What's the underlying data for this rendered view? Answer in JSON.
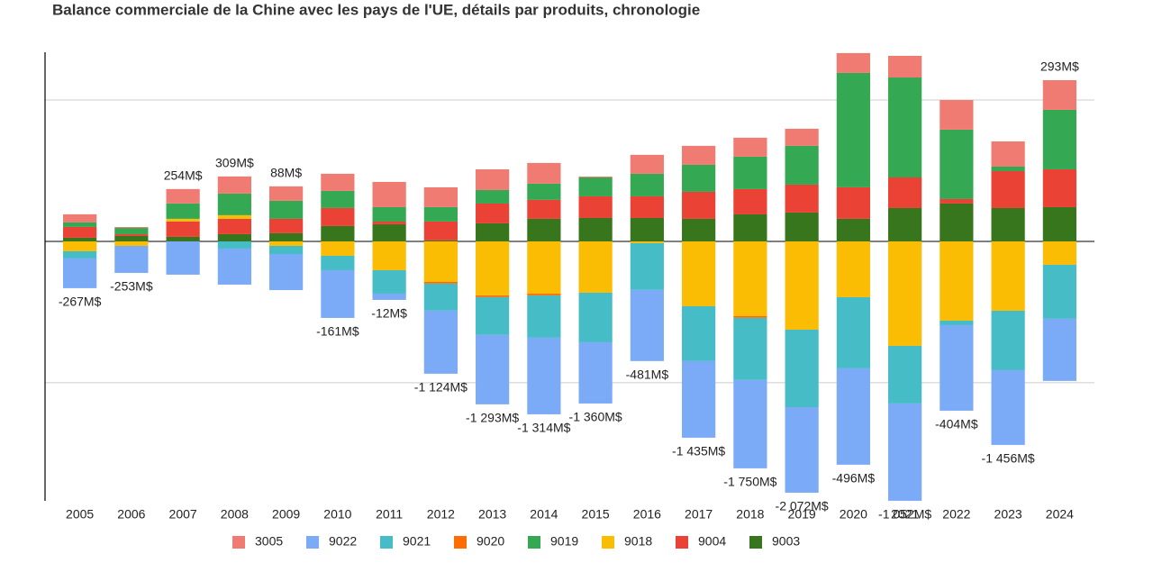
{
  "chart_data": {
    "type": "stacked_bar",
    "title": "Balance commerciale de la Chine avec les pays de l'UE, détails par produits, chronologie",
    "categories": [
      "2005",
      "2006",
      "2007",
      "2008",
      "2009",
      "2010",
      "2011",
      "2012",
      "2013",
      "2014",
      "2015",
      "2016",
      "2017",
      "2018",
      "2019",
      "2020",
      "2021",
      "2022",
      "2023",
      "2024"
    ],
    "series": [
      {
        "name": "3005",
        "color": "#f07b72",
        "values": [
          115,
          13,
          204,
          242,
          204,
          242,
          357,
          280,
          293,
          293,
          13,
          268,
          268,
          268,
          242,
          280,
          306,
          420,
          357,
          420
        ]
      },
      {
        "name": "9022",
        "color": "#7baaf7",
        "values": [
          -420,
          -382,
          -471,
          -510,
          -510,
          -675,
          -89,
          -892,
          -981,
          -1083,
          -866,
          -1006,
          -1083,
          -1249,
          -1210,
          -1363,
          -1376,
          -1210,
          -1057,
          -879
        ]
      },
      {
        "name": "9021",
        "color": "#46bdc6",
        "values": [
          -102,
          0,
          0,
          -102,
          -115,
          -204,
          -331,
          -382,
          -535,
          -599,
          -701,
          -662,
          -777,
          -879,
          -1096,
          -1006,
          -815,
          -64,
          -841,
          -764
        ]
      },
      {
        "name": "9020",
        "color": "#ff6d01",
        "values": [
          0,
          0,
          0,
          0,
          0,
          0,
          0,
          -25,
          -25,
          -25,
          0,
          0,
          0,
          -25,
          0,
          0,
          0,
          0,
          0,
          0
        ]
      },
      {
        "name": "9019",
        "color": "#34a853",
        "values": [
          64,
          89,
          217,
          306,
          255,
          242,
          204,
          204,
          191,
          229,
          268,
          319,
          382,
          459,
          548,
          1618,
          1414,
          981,
          64,
          841
        ]
      },
      {
        "name": "9018",
        "color": "#fbbc04",
        "values": [
          -140,
          -64,
          38,
          51,
          -64,
          -204,
          -408,
          -573,
          -764,
          -739,
          -726,
          -25,
          -917,
          -1057,
          -1249,
          -790,
          -1478,
          -1121,
          -981,
          -331
        ]
      },
      {
        "name": "9004",
        "color": "#ea4335",
        "values": [
          153,
          25,
          217,
          217,
          204,
          255,
          38,
          268,
          280,
          268,
          306,
          306,
          382,
          357,
          395,
          446,
          433,
          64,
          522,
          535
        ]
      },
      {
        "name": "9003",
        "color": "#38761d",
        "values": [
          51,
          76,
          64,
          102,
          115,
          217,
          242,
          13,
          255,
          319,
          331,
          331,
          319,
          382,
          408,
          319,
          471,
          535,
          471,
          484
        ]
      }
    ],
    "totals": {
      "values": [
        -267,
        -253,
        254,
        309,
        88,
        -161,
        -12,
        -1124,
        -1293,
        -1314,
        -1360,
        -481,
        -1435,
        -1750,
        -2072,
        -496,
        -1052,
        -404,
        -1456,
        293
      ],
      "value_labels": [
        "-267M$",
        "-253M$",
        "254M$",
        "309M$",
        "88M$",
        "-161M$",
        "-12M$",
        "-1 124M$",
        "-1 293M$",
        "-1 314M$",
        "-1 360M$",
        "-481M$",
        "-1 435M$",
        "-1 750M$",
        "-2 072M$",
        "-496M$",
        "-1 052M$",
        "-404M$",
        "-1 456M$",
        "293M$"
      ],
      "positive_color": "#5f9e2f",
      "negative_color": "#a61c1c"
    },
    "ylim": [
      -3670,
      2675
    ],
    "yticks": [
      -2000,
      0,
      2000
    ],
    "grid": true,
    "legend": "bottom"
  }
}
